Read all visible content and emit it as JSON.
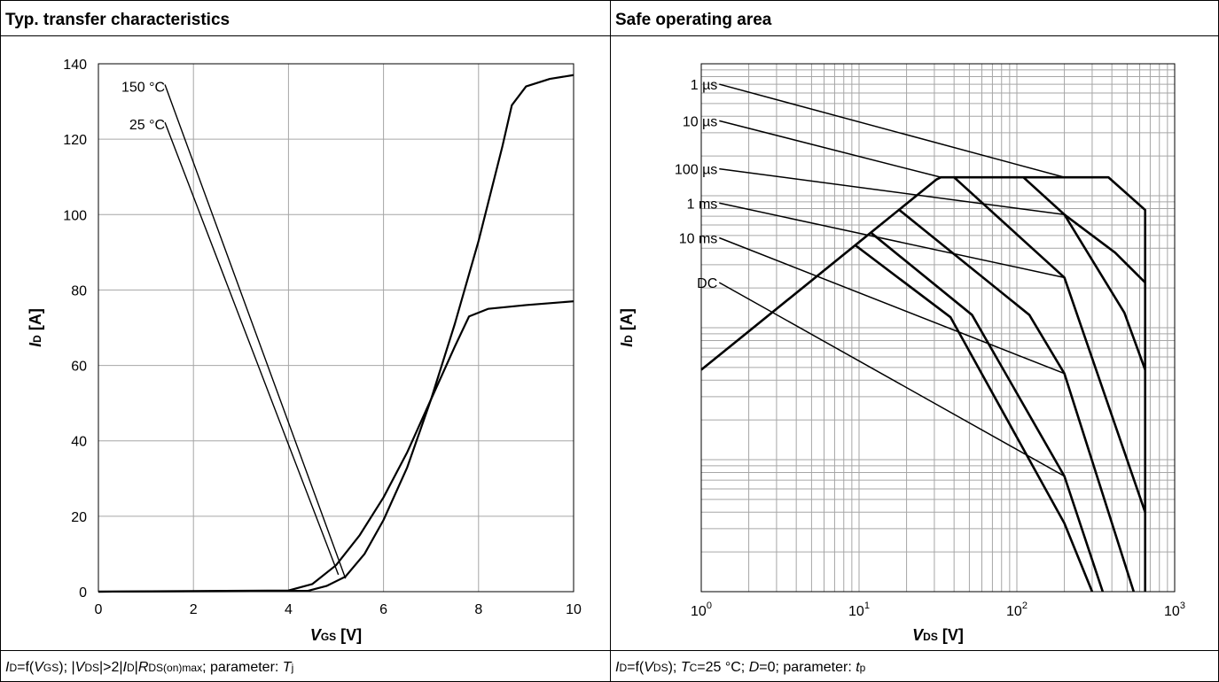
{
  "page": {
    "left_title": "Typ. transfer characteristics",
    "right_title": "Safe operating area",
    "left_caption": {
      "a": "I",
      "b": "D",
      "c": "=f(",
      "d": "V",
      "e": "GS",
      "f": "); |",
      "g": "V",
      "h": "DS",
      "i": "|>2|",
      "j": "I",
      "k": "D",
      "l": "|",
      "m": "R",
      "n": "DS(on)max",
      "o": "; parameter:  ",
      "p": "T",
      "q": "j"
    },
    "right_caption": {
      "a": "I",
      "b": "D",
      "c": "=f(",
      "d": "V",
      "e": "DS",
      "f": ");  ",
      "g": "T",
      "h": "C",
      "i": "=25 °C; ",
      "j": "D",
      "k": "=0; parameter: ",
      "l": "t",
      "m": "p"
    }
  },
  "chart_data": [
    {
      "type": "line",
      "title": "Typ. transfer characteristics",
      "xlabel": {
        "main": "V",
        "sub": "GS",
        "unit": " [V]"
      },
      "ylabel": {
        "main": "I",
        "sub": "D",
        "unit": " [A]"
      },
      "xlim": [
        0,
        10
      ],
      "ylim": [
        0,
        140
      ],
      "xticks": [
        0,
        2,
        4,
        6,
        8,
        10
      ],
      "yticks": [
        0,
        20,
        40,
        60,
        80,
        100,
        120,
        140
      ],
      "grid": true,
      "series": [
        {
          "name": "150 °C",
          "x": [
            0,
            4,
            4.5,
            5,
            5.5,
            6,
            6.5,
            7,
            7.5,
            7.8,
            8.2,
            9,
            10
          ],
          "y": [
            0,
            0.3,
            2,
            7,
            15,
            25,
            37,
            51,
            65,
            73,
            75,
            76,
            77
          ]
        },
        {
          "name": "25 °C",
          "x": [
            0,
            4.4,
            4.8,
            5.2,
            5.6,
            6,
            6.5,
            7,
            7.5,
            8,
            8.5,
            8.7,
            9,
            9.5,
            10
          ],
          "y": [
            0,
            0.2,
            1.5,
            4,
            10,
            19,
            33,
            51,
            71,
            93,
            118,
            129,
            134,
            136,
            137
          ]
        }
      ],
      "annotations": [
        {
          "text": "150 °C",
          "x": 1.4,
          "y": 134,
          "to": [
            5.2,
            3.5
          ]
        },
        {
          "text": "25 °C",
          "x": 1.4,
          "y": 124,
          "to": [
            5.05,
            4.5
          ]
        }
      ]
    },
    {
      "type": "line",
      "title": "Safe operating area",
      "xlabel": {
        "main": "V",
        "sub": "DS",
        "unit": " [V]"
      },
      "ylabel": {
        "main": "I",
        "sub": "D",
        "unit": " [A]"
      },
      "xscale": "log",
      "yscale": "log",
      "xlim": [
        1,
        1000
      ],
      "ylim": [
        0.1,
        1000
      ],
      "xticks": [
        {
          "value": 1,
          "base": "10",
          "exp": "0"
        },
        {
          "value": 10,
          "base": "10",
          "exp": "1"
        },
        {
          "value": 100,
          "base": "10",
          "exp": "2"
        },
        {
          "value": 1000,
          "base": "10",
          "exp": "3"
        }
      ],
      "yticks": [
        {
          "value": 0.1,
          "base": "10",
          "exp": "-1"
        },
        {
          "value": 1,
          "base": "10",
          "exp": "0"
        },
        {
          "value": 10,
          "base": "10",
          "exp": "1"
        },
        {
          "value": 100,
          "base": "10",
          "exp": "2"
        },
        {
          "value": 1000,
          "base": "10",
          "exp": "3"
        }
      ],
      "grid": true,
      "series": [
        {
          "name": "1 µs",
          "x": [
            1.3,
            200
          ],
          "y": [
            700,
            138
          ]
        },
        {
          "name": "10 µs",
          "x": [
            1.3,
            33
          ],
          "y": [
            370,
            138
          ]
        },
        {
          "name": "100 µs",
          "x": [
            1.3,
            200
          ],
          "y": [
            160,
            72
          ]
        },
        {
          "name": "1 ms",
          "x": [
            1.3,
            200
          ],
          "y": [
            88,
            24
          ]
        },
        {
          "name": "10 ms",
          "x": [
            1.3,
            200
          ],
          "y": [
            48,
            4.5
          ]
        },
        {
          "name": "DC",
          "x": [
            1.3,
            200
          ],
          "y": [
            22,
            0.75
          ]
        },
        {
          "name": "boundary",
          "x": [
            1,
            31,
            33,
            380,
            650,
            650
          ],
          "y": [
            4.8,
            133,
            138,
            138,
            78,
            0.1
          ]
        },
        {
          "name": "1 µs-limit",
          "x": [
            200,
            420,
            650
          ],
          "y": [
            72,
            37,
            22
          ]
        },
        {
          "name": "10 µs-limit",
          "x": [
            110,
            200,
            480,
            650
          ],
          "y": [
            138,
            72,
            13,
            4.8
          ]
        },
        {
          "name": "100 µs-limit",
          "x": [
            40,
            200,
            650
          ],
          "y": [
            138,
            24,
            0.4
          ]
        },
        {
          "name": "1 ms-limit",
          "x": [
            18,
            120,
            200,
            550
          ],
          "y": [
            78,
            12.5,
            4.5,
            0.1
          ]
        },
        {
          "name": "10 ms-limit",
          "x": [
            12,
            52,
            200,
            350
          ],
          "y": [
            52,
            12.5,
            0.75,
            0.1
          ]
        },
        {
          "name": "DC-limit",
          "x": [
            9.5,
            38,
            200,
            300
          ],
          "y": [
            42,
            12,
            0.33,
            0.1
          ]
        }
      ],
      "annotations": [
        {
          "text": "1 µs",
          "x": 1.3,
          "y": 700
        },
        {
          "text": "10 µs",
          "x": 1.3,
          "y": 370
        },
        {
          "text": "100 µs",
          "x": 1.3,
          "y": 160
        },
        {
          "text": "1 ms",
          "x": 1.3,
          "y": 88
        },
        {
          "text": "10 ms",
          "x": 1.3,
          "y": 48
        },
        {
          "text": "DC",
          "x": 1.3,
          "y": 22
        }
      ]
    }
  ]
}
